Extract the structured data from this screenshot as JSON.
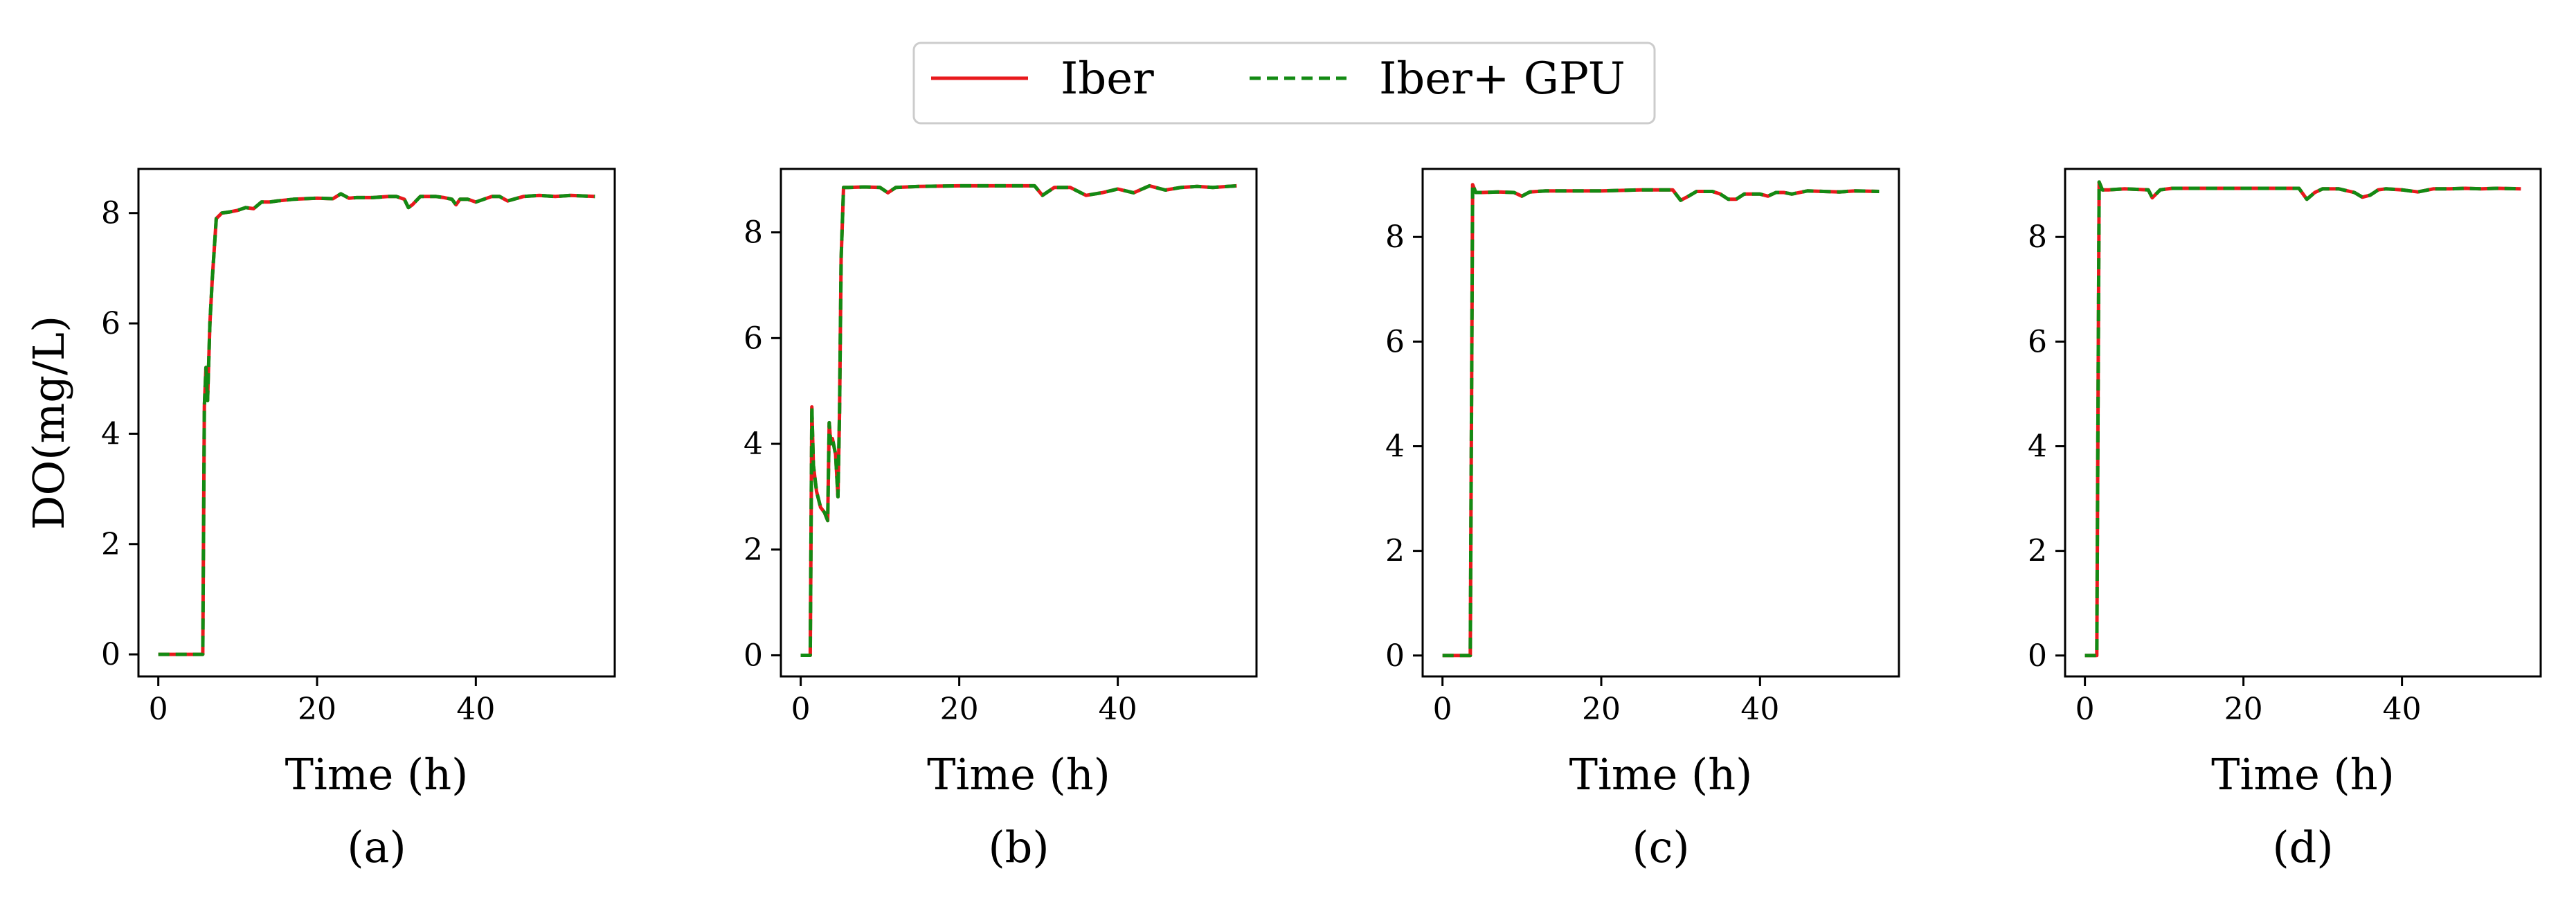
{
  "colors": {
    "iber": "#e8191d",
    "iber_gpu": "#138a13",
    "axis": "#000000",
    "background": "#ffffff"
  },
  "legend": {
    "entries": [
      "Iber",
      "Iber+ GPU"
    ]
  },
  "chart_data": [
    {
      "type": "line",
      "panel_label": "(a)",
      "xlabel": "Time (h)",
      "ylabel": "DO(mg/L)",
      "xlim": [
        -2.5,
        57.5
      ],
      "ylim": [
        -0.4,
        8.8
      ],
      "xticks": [
        0,
        20,
        40
      ],
      "xtick_labels": [
        "0",
        "20",
        "40"
      ],
      "yticks": [
        0,
        2,
        4,
        6,
        8
      ],
      "ytick_labels": [
        "0",
        "2",
        "4",
        "6",
        "8"
      ],
      "series": [
        {
          "name": "Iber",
          "style": "solid",
          "x": [
            0,
            5.6,
            5.8,
            6.0,
            6.2,
            6.5,
            6.8,
            7.3,
            8,
            9,
            10,
            11,
            12,
            13,
            14,
            15,
            17,
            20,
            22,
            23,
            24,
            25,
            27,
            29,
            30,
            31,
            31.5,
            32,
            33,
            34,
            35,
            36,
            37,
            37.5,
            38,
            39,
            40,
            41,
            42,
            43,
            44,
            46,
            48,
            50,
            52,
            55
          ],
          "y": [
            0,
            0,
            4.5,
            5.2,
            4.6,
            6.0,
            6.8,
            7.9,
            8.0,
            8.02,
            8.05,
            8.1,
            8.08,
            8.2,
            8.2,
            8.22,
            8.25,
            8.27,
            8.26,
            8.35,
            8.27,
            8.28,
            8.28,
            8.3,
            8.3,
            8.25,
            8.1,
            8.15,
            8.3,
            8.3,
            8.3,
            8.28,
            8.25,
            8.15,
            8.25,
            8.25,
            8.2,
            8.25,
            8.3,
            8.3,
            8.22,
            8.3,
            8.32,
            8.3,
            8.32,
            8.3
          ]
        },
        {
          "name": "Iber+ GPU",
          "style": "dashed",
          "x": [
            0,
            5.6,
            5.8,
            6.0,
            6.2,
            6.5,
            6.8,
            7.3,
            8,
            9,
            10,
            11,
            12,
            13,
            14,
            15,
            17,
            20,
            22,
            23,
            24,
            25,
            27,
            29,
            30,
            31,
            31.5,
            32,
            33,
            34,
            35,
            36,
            37,
            37.5,
            38,
            39,
            40,
            41,
            42,
            43,
            44,
            46,
            48,
            50,
            52,
            55
          ],
          "y": [
            0,
            0,
            4.5,
            5.2,
            4.6,
            6.0,
            6.8,
            7.9,
            8.0,
            8.02,
            8.05,
            8.1,
            8.08,
            8.2,
            8.2,
            8.22,
            8.25,
            8.27,
            8.26,
            8.35,
            8.27,
            8.28,
            8.28,
            8.3,
            8.3,
            8.25,
            8.1,
            8.15,
            8.3,
            8.3,
            8.3,
            8.28,
            8.25,
            8.15,
            8.25,
            8.25,
            8.2,
            8.25,
            8.3,
            8.3,
            8.22,
            8.3,
            8.32,
            8.3,
            8.32,
            8.3
          ]
        }
      ]
    },
    {
      "type": "line",
      "panel_label": "(b)",
      "xlabel": "Time (h)",
      "ylabel": "",
      "xlim": [
        -2.5,
        57.5
      ],
      "ylim": [
        -0.4,
        9.2
      ],
      "xticks": [
        0,
        20,
        40
      ],
      "xtick_labels": [
        "0",
        "20",
        "40"
      ],
      "yticks": [
        0,
        2,
        4,
        6,
        8
      ],
      "ytick_labels": [
        "0",
        "2",
        "4",
        "6",
        "8"
      ],
      "series": [
        {
          "name": "Iber",
          "style": "solid",
          "x": [
            0,
            1.2,
            1.4,
            1.6,
            2.0,
            2.5,
            3.0,
            3.4,
            3.6,
            3.8,
            4.0,
            4.4,
            4.7,
            4.9,
            5.1,
            5.4,
            6,
            8,
            10,
            11,
            12,
            15,
            20,
            25,
            28,
            29.5,
            30.5,
            32,
            34,
            36,
            38,
            40,
            42,
            44,
            46,
            48,
            50,
            52,
            55
          ],
          "y": [
            0,
            0,
            4.7,
            3.6,
            3.1,
            2.8,
            2.7,
            2.55,
            4.4,
            4.0,
            4.1,
            3.8,
            3.0,
            4.6,
            7.5,
            8.85,
            8.85,
            8.86,
            8.85,
            8.75,
            8.85,
            8.87,
            8.88,
            8.88,
            8.88,
            8.88,
            8.7,
            8.85,
            8.85,
            8.7,
            8.75,
            8.82,
            8.75,
            8.88,
            8.8,
            8.85,
            8.87,
            8.85,
            8.88
          ]
        },
        {
          "name": "Iber+ GPU",
          "style": "dashed",
          "x": [
            0,
            1.2,
            1.4,
            1.6,
            2.0,
            2.5,
            3.0,
            3.4,
            3.6,
            3.8,
            4.0,
            4.4,
            4.7,
            4.9,
            5.1,
            5.4,
            6,
            8,
            10,
            11,
            12,
            15,
            20,
            25,
            28,
            29.5,
            30.5,
            32,
            34,
            36,
            38,
            40,
            42,
            44,
            46,
            48,
            50,
            52,
            55
          ],
          "y": [
            0,
            0,
            4.7,
            3.6,
            3.1,
            2.8,
            2.7,
            2.55,
            4.4,
            4.0,
            4.1,
            3.8,
            3.0,
            4.6,
            7.5,
            8.85,
            8.85,
            8.86,
            8.85,
            8.75,
            8.85,
            8.87,
            8.88,
            8.88,
            8.88,
            8.88,
            8.7,
            8.85,
            8.85,
            8.7,
            8.75,
            8.82,
            8.75,
            8.88,
            8.8,
            8.85,
            8.87,
            8.85,
            8.88
          ]
        }
      ]
    },
    {
      "type": "line",
      "panel_label": "(c)",
      "xlabel": "Time (h)",
      "ylabel": "",
      "xlim": [
        -2.5,
        57.5
      ],
      "ylim": [
        -0.4,
        9.3
      ],
      "xticks": [
        0,
        20,
        40
      ],
      "xtick_labels": [
        "0",
        "20",
        "40"
      ],
      "yticks": [
        0,
        2,
        4,
        6,
        8
      ],
      "ytick_labels": [
        "0",
        "2",
        "4",
        "6",
        "8"
      ],
      "series": [
        {
          "name": "Iber",
          "style": "solid",
          "x": [
            0,
            3.5,
            3.8,
            4.2,
            5,
            7,
            9,
            10,
            11,
            13,
            16,
            20,
            25,
            28,
            29,
            30,
            31,
            32,
            34,
            35,
            36,
            37,
            38,
            40,
            41,
            42,
            43,
            44,
            46,
            48,
            50,
            52,
            55
          ],
          "y": [
            0,
            0,
            9.0,
            8.85,
            8.85,
            8.86,
            8.85,
            8.78,
            8.86,
            8.88,
            8.88,
            8.88,
            8.9,
            8.9,
            8.9,
            8.7,
            8.78,
            8.87,
            8.87,
            8.82,
            8.72,
            8.72,
            8.82,
            8.82,
            8.78,
            8.85,
            8.85,
            8.82,
            8.88,
            8.87,
            8.86,
            8.88,
            8.87
          ]
        },
        {
          "name": "Iber+ GPU",
          "style": "dashed",
          "x": [
            0,
            3.5,
            3.8,
            4.2,
            5,
            7,
            9,
            10,
            11,
            13,
            16,
            20,
            25,
            28,
            29,
            30,
            31,
            32,
            34,
            35,
            36,
            37,
            38,
            40,
            41,
            42,
            43,
            44,
            46,
            48,
            50,
            52,
            55
          ],
          "y": [
            0,
            0,
            9.0,
            8.85,
            8.85,
            8.86,
            8.85,
            8.78,
            8.86,
            8.88,
            8.88,
            8.88,
            8.9,
            8.9,
            8.9,
            8.7,
            8.78,
            8.87,
            8.87,
            8.82,
            8.72,
            8.72,
            8.82,
            8.82,
            8.78,
            8.85,
            8.85,
            8.82,
            8.88,
            8.87,
            8.86,
            8.88,
            8.87
          ]
        }
      ]
    },
    {
      "type": "line",
      "panel_label": "(d)",
      "xlabel": "Time (h)",
      "ylabel": "",
      "xlim": [
        -2.5,
        57.5
      ],
      "ylim": [
        -0.4,
        9.3
      ],
      "xticks": [
        0,
        20,
        40
      ],
      "xtick_labels": [
        "0",
        "20",
        "40"
      ],
      "yticks": [
        0,
        2,
        4,
        6,
        8
      ],
      "ytick_labels": [
        "0",
        "2",
        "4",
        "6",
        "8"
      ],
      "series": [
        {
          "name": "Iber",
          "style": "solid",
          "x": [
            0,
            1.5,
            1.8,
            2.2,
            3,
            5,
            8,
            8.5,
            9.5,
            11,
            14,
            18,
            22,
            26,
            27,
            28,
            29,
            30,
            32,
            34,
            35,
            36,
            37,
            38,
            40,
            42,
            44,
            46,
            48,
            50,
            52,
            55
          ],
          "y": [
            0,
            0,
            9.05,
            8.9,
            8.9,
            8.92,
            8.9,
            8.75,
            8.9,
            8.93,
            8.93,
            8.93,
            8.93,
            8.93,
            8.93,
            8.72,
            8.85,
            8.92,
            8.92,
            8.85,
            8.76,
            8.8,
            8.9,
            8.92,
            8.9,
            8.86,
            8.92,
            8.92,
            8.93,
            8.92,
            8.93,
            8.92
          ]
        },
        {
          "name": "Iber+ GPU",
          "style": "dashed",
          "x": [
            0,
            1.5,
            1.8,
            2.2,
            3,
            5,
            8,
            8.5,
            9.5,
            11,
            14,
            18,
            22,
            26,
            27,
            28,
            29,
            30,
            32,
            34,
            35,
            36,
            37,
            38,
            40,
            42,
            44,
            46,
            48,
            50,
            52,
            55
          ],
          "y": [
            0,
            0,
            9.05,
            8.9,
            8.9,
            8.92,
            8.9,
            8.75,
            8.9,
            8.93,
            8.93,
            8.93,
            8.93,
            8.93,
            8.93,
            8.72,
            8.85,
            8.92,
            8.92,
            8.85,
            8.76,
            8.8,
            8.9,
            8.92,
            8.9,
            8.86,
            8.92,
            8.92,
            8.93,
            8.92,
            8.93,
            8.92
          ]
        }
      ]
    }
  ]
}
